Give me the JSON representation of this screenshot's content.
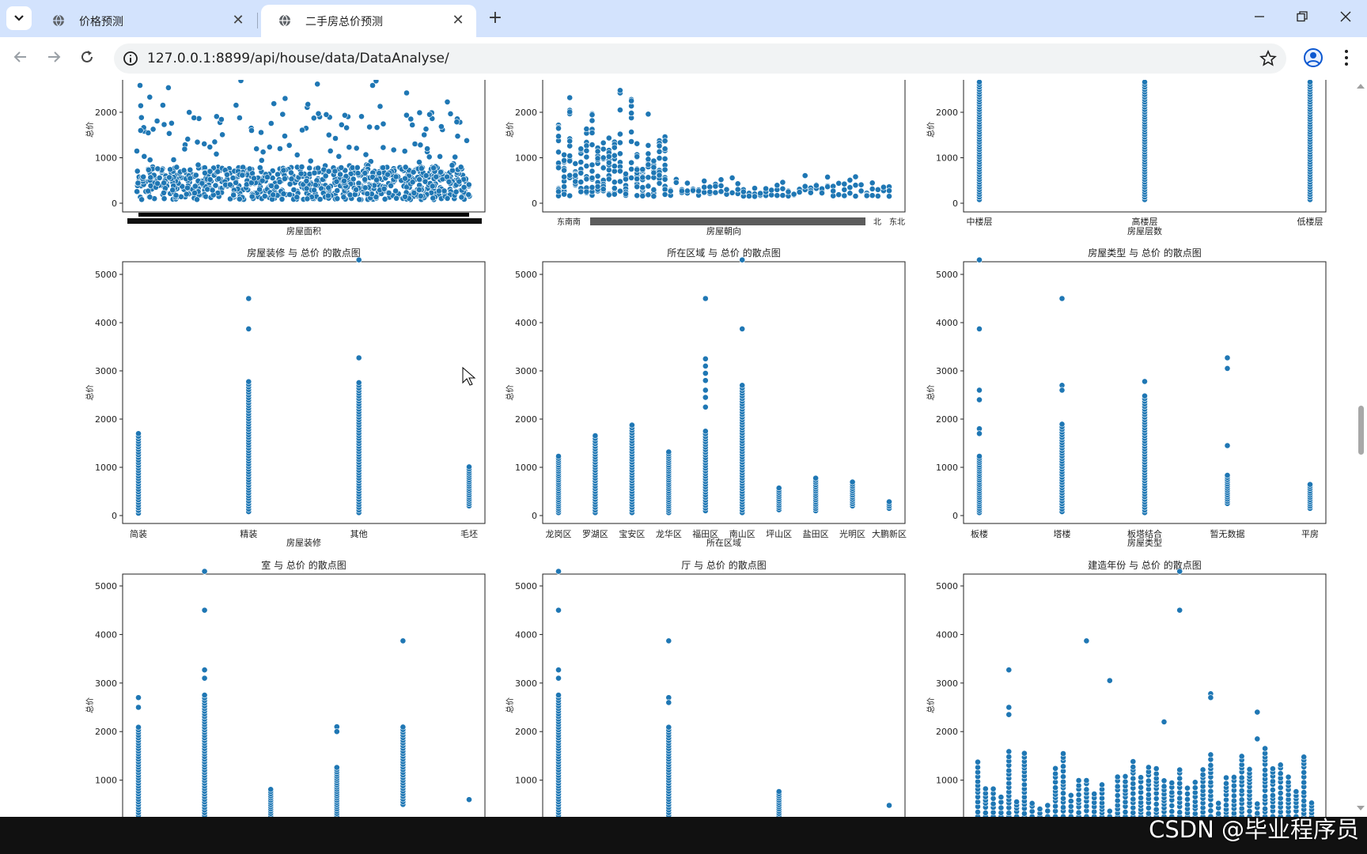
{
  "browser": {
    "tabs": [
      {
        "title": "价格预测",
        "active": false
      },
      {
        "title": "二手房总价预测",
        "active": true
      }
    ],
    "url": "127.0.0.1:8899/api/house/data/DataAnalyse/",
    "icons": {
      "tab_menu": "chevron-down-icon",
      "tab_favicon": "globe-icon",
      "tab_close": "close-icon",
      "new_tab": "plus-icon",
      "back": "arrow-left-icon",
      "forward": "arrow-right-icon",
      "reload": "reload-icon",
      "site_info": "info-icon",
      "bookmark": "star-icon",
      "profile": "profile-icon",
      "menu": "kebab-menu-icon",
      "minimize": "minimize-icon",
      "restore": "restore-icon",
      "close_window": "close-icon"
    }
  },
  "watermark": "CSDN @毕业程序员",
  "colors": {
    "point": "#1f77b4",
    "point_edge": "#ffffff",
    "tab_strip": "#d3e3fd"
  },
  "chart_data": [
    {
      "id": "area",
      "type": "scatter",
      "title": "",
      "xlabel": "房屋面积",
      "ylabel": "总价",
      "yticks": [
        0,
        1000,
        2000
      ],
      "ylim": [
        -200,
        2700
      ],
      "note": "categorical x with hundreds of overlapping labels"
    },
    {
      "id": "orientation",
      "type": "scatter",
      "title": "",
      "xlabel": "房屋朝向",
      "ylabel": "总价",
      "yticks": [
        0,
        1000,
        2000
      ],
      "ylim": [
        -200,
        2700
      ],
      "categories_visible": [
        "东南",
        "南",
        "北",
        "东北"
      ]
    },
    {
      "id": "floor",
      "type": "scatter",
      "title": "",
      "xlabel": "房屋层数",
      "ylabel": "总价",
      "yticks": [
        0,
        1000,
        2000
      ],
      "ylim": [
        -200,
        2700
      ],
      "categories": [
        "中楼层",
        "高楼层",
        "低楼层"
      ],
      "series": [
        {
          "values": [
            [
              100,
              2650
            ],
            [
              100,
              2400
            ],
            [
              100,
              2100
            ]
          ]
        }
      ]
    },
    {
      "id": "decoration",
      "type": "scatter",
      "title": "房屋装修  与  总价  的散点图",
      "xlabel": "房屋装修",
      "ylabel": "总价",
      "yticks": [
        0,
        1000,
        2000,
        3000,
        4000,
        5000
      ],
      "ylim": [
        -200,
        5600
      ],
      "categories": [
        "简装",
        "精装",
        "其他",
        "毛坯"
      ],
      "ranges": [
        [
          50,
          1700
        ],
        [
          80,
          2800
        ],
        [
          60,
          2800
        ],
        [
          200,
          1050
        ]
      ],
      "outliers": [
        [
          1,
          4500
        ],
        [
          1,
          3870
        ],
        [
          2,
          5300
        ],
        [
          2,
          3270
        ]
      ]
    },
    {
      "id": "district",
      "type": "scatter",
      "title": "所在区域  与  总价  的散点图",
      "xlabel": "所在区域",
      "ylabel": "总价",
      "yticks": [
        0,
        1000,
        2000,
        3000,
        4000,
        5000
      ],
      "ylim": [
        -200,
        5600
      ],
      "categories": [
        "龙岗区",
        "罗湖区",
        "宝安区",
        "龙华区",
        "福田区",
        "南山区",
        "坪山区",
        "盐田区",
        "光明区",
        "大鹏新区"
      ],
      "ranges": [
        [
          60,
          1260
        ],
        [
          60,
          1700
        ],
        [
          60,
          1900
        ],
        [
          60,
          1350
        ],
        [
          100,
          1800
        ],
        [
          60,
          2700
        ],
        [
          120,
          600
        ],
        [
          100,
          800
        ],
        [
          200,
          700
        ],
        [
          150,
          300
        ]
      ],
      "outliers": [
        [
          4,
          4500
        ],
        [
          4,
          3250
        ],
        [
          4,
          3100
        ],
        [
          4,
          2950
        ],
        [
          4,
          2800
        ],
        [
          4,
          2600
        ],
        [
          4,
          2450
        ],
        [
          4,
          2250
        ],
        [
          5,
          5300
        ],
        [
          5,
          3870
        ]
      ]
    },
    {
      "id": "type",
      "type": "scatter",
      "title": "房屋类型  与  总价  的散点图",
      "xlabel": "房屋类型",
      "ylabel": "总价",
      "yticks": [
        0,
        1000,
        2000,
        3000,
        4000,
        5000
      ],
      "ylim": [
        -200,
        5600
      ],
      "categories": [
        "板楼",
        "塔楼",
        "板塔结合",
        "暂无数据",
        "平房"
      ],
      "ranges": [
        [
          60,
          1250
        ],
        [
          80,
          1900
        ],
        [
          60,
          2500
        ],
        [
          250,
          850
        ],
        [
          150,
          650
        ]
      ],
      "outliers": [
        [
          0,
          5300
        ],
        [
          0,
          3870
        ],
        [
          0,
          2600
        ],
        [
          0,
          2400
        ],
        [
          0,
          1800
        ],
        [
          0,
          1700
        ],
        [
          1,
          4500
        ],
        [
          1,
          2700
        ],
        [
          1,
          2600
        ],
        [
          2,
          2780
        ],
        [
          3,
          3270
        ],
        [
          3,
          3050
        ],
        [
          3,
          1450
        ]
      ]
    },
    {
      "id": "rooms",
      "type": "scatter",
      "title": "室  与  总价  的散点图",
      "xlabel": "",
      "ylabel": "总价",
      "yticks": [
        1000,
        2000,
        3000,
        4000,
        5000
      ],
      "ylim": [
        -200,
        5600
      ],
      "categories": [
        "",
        "",
        "",
        "",
        "",
        ""
      ],
      "ranges": [
        [
          0,
          2100
        ],
        [
          0,
          2800
        ],
        [
          0,
          850
        ],
        [
          0,
          1300
        ],
        [
          500,
          2100
        ],
        [
          600,
          600
        ]
      ],
      "outliers": [
        [
          0,
          2700
        ],
        [
          0,
          2500
        ],
        [
          1,
          5300
        ],
        [
          1,
          4500
        ],
        [
          1,
          3270
        ],
        [
          1,
          3100
        ],
        [
          3,
          2100
        ],
        [
          3,
          2000
        ],
        [
          4,
          3870
        ]
      ]
    },
    {
      "id": "halls",
      "type": "scatter",
      "title": "厅  与  总价  的散点图",
      "xlabel": "",
      "ylabel": "总价",
      "yticks": [
        1000,
        2000,
        3000,
        4000,
        5000
      ],
      "ylim": [
        -200,
        5600
      ],
      "categories": [
        "",
        "",
        "",
        ""
      ],
      "ranges": [
        [
          0,
          2800
        ],
        [
          0,
          2100
        ],
        [
          0,
          800
        ],
        [
          480,
          480
        ]
      ],
      "outliers": [
        [
          0,
          5300
        ],
        [
          0,
          4500
        ],
        [
          0,
          3270
        ],
        [
          0,
          3100
        ],
        [
          1,
          3870
        ],
        [
          1,
          2700
        ],
        [
          1,
          2600
        ]
      ]
    },
    {
      "id": "year",
      "type": "scatter",
      "title": "建造年份  与  总价  的散点图",
      "xlabel": "",
      "ylabel": "总价",
      "yticks": [
        1000,
        2000,
        3000,
        4000,
        5000
      ],
      "ylim": [
        -200,
        5600
      ],
      "outliers": [
        [
          4,
          3270
        ],
        [
          4,
          2500
        ],
        [
          4,
          2350
        ],
        [
          14,
          3870
        ],
        [
          17,
          3050
        ],
        [
          26,
          5300
        ],
        [
          26,
          4500
        ],
        [
          24,
          2200
        ],
        [
          30,
          2780
        ],
        [
          30,
          2700
        ],
        [
          36,
          2400
        ],
        [
          36,
          1850
        ]
      ]
    }
  ]
}
